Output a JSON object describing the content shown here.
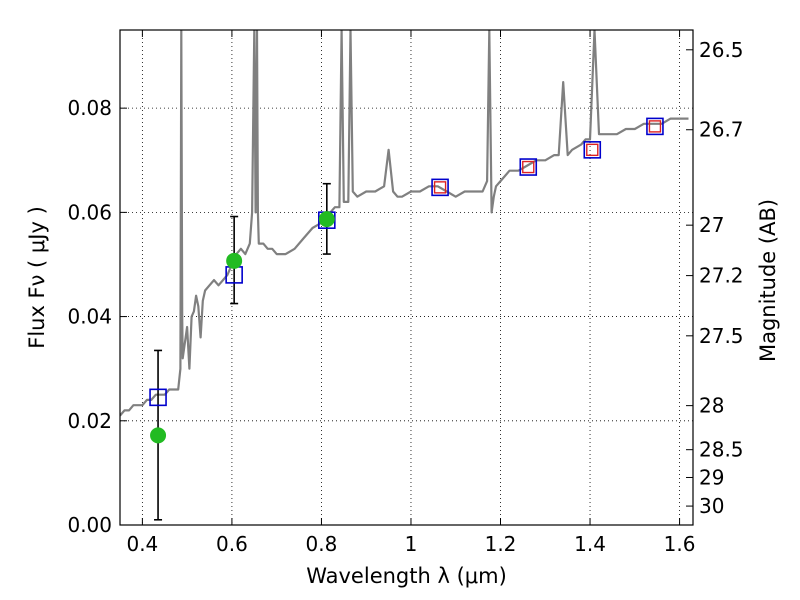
{
  "chart_data": {
    "type": "line",
    "xlabel": "Wavelength  λ (μm)",
    "ylabel": "Flux  Fν  ( μJy )",
    "ylabel_right": "Magnitude (AB)",
    "xlim": [
      0.35,
      1.63
    ],
    "ylim": [
      0.0,
      0.095
    ],
    "grid": true,
    "x_ticks": [
      0.4,
      0.6,
      0.8,
      1.0,
      1.2,
      1.4,
      1.6
    ],
    "x_tick_labels": [
      "0.4",
      "0.6",
      "0.8",
      "1",
      "1.2",
      "1.4",
      "1.6"
    ],
    "y_ticks": [
      0.0,
      0.02,
      0.04,
      0.06,
      0.08
    ],
    "y_tick_labels": [
      "0.00",
      "0.02",
      "0.04",
      "0.06",
      "0.08"
    ],
    "mag_ticks": [
      {
        "label": "26.5",
        "mag": 26.5
      },
      {
        "label": "26.7",
        "mag": 26.7
      },
      {
        "label": "27",
        "mag": 27.0
      },
      {
        "label": "27.2",
        "mag": 27.2
      },
      {
        "label": "27.5",
        "mag": 27.5
      },
      {
        "label": "28",
        "mag": 28.0
      },
      {
        "label": "28.5",
        "mag": 28.5
      },
      {
        "label": "29",
        "mag": 29.0
      },
      {
        "label": "30",
        "mag": 30.0
      }
    ],
    "spectrum": {
      "color": "#808080",
      "x": [
        0.35,
        0.36,
        0.37,
        0.38,
        0.39,
        0.4,
        0.41,
        0.42,
        0.43,
        0.44,
        0.45,
        0.46,
        0.47,
        0.48,
        0.485,
        0.487,
        0.489,
        0.49,
        0.495,
        0.5,
        0.505,
        0.51,
        0.515,
        0.52,
        0.525,
        0.53,
        0.535,
        0.54,
        0.55,
        0.56,
        0.57,
        0.58,
        0.59,
        0.6,
        0.61,
        0.62,
        0.63,
        0.64,
        0.645,
        0.65,
        0.653,
        0.656,
        0.658,
        0.66,
        0.67,
        0.68,
        0.69,
        0.7,
        0.72,
        0.74,
        0.76,
        0.78,
        0.8,
        0.81,
        0.82,
        0.83,
        0.84,
        0.845,
        0.85,
        0.86,
        0.865,
        0.87,
        0.88,
        0.9,
        0.92,
        0.94,
        0.95,
        0.96,
        0.97,
        0.98,
        1.0,
        1.02,
        1.04,
        1.06,
        1.08,
        1.1,
        1.12,
        1.14,
        1.16,
        1.17,
        1.175,
        1.18,
        1.185,
        1.19,
        1.2,
        1.22,
        1.24,
        1.26,
        1.28,
        1.3,
        1.32,
        1.33,
        1.34,
        1.35,
        1.36,
        1.38,
        1.39,
        1.4,
        1.41,
        1.42,
        1.44,
        1.46,
        1.48,
        1.5,
        1.52,
        1.54,
        1.56,
        1.58,
        1.6,
        1.62
      ],
      "y": [
        0.021,
        0.022,
        0.022,
        0.023,
        0.023,
        0.023,
        0.024,
        0.024,
        0.025,
        0.025,
        0.025,
        0.026,
        0.026,
        0.026,
        0.03,
        0.095,
        0.04,
        0.032,
        0.035,
        0.038,
        0.03,
        0.04,
        0.041,
        0.044,
        0.042,
        0.036,
        0.043,
        0.045,
        0.046,
        0.047,
        0.046,
        0.047,
        0.048,
        0.05,
        0.052,
        0.053,
        0.052,
        0.054,
        0.06,
        0.095,
        0.06,
        0.095,
        0.06,
        0.054,
        0.054,
        0.053,
        0.053,
        0.052,
        0.052,
        0.053,
        0.055,
        0.057,
        0.058,
        0.06,
        0.06,
        0.061,
        0.061,
        0.095,
        0.062,
        0.062,
        0.095,
        0.064,
        0.063,
        0.064,
        0.064,
        0.065,
        0.072,
        0.064,
        0.063,
        0.063,
        0.064,
        0.064,
        0.065,
        0.065,
        0.064,
        0.063,
        0.064,
        0.064,
        0.064,
        0.066,
        0.095,
        0.06,
        0.063,
        0.065,
        0.066,
        0.068,
        0.068,
        0.069,
        0.07,
        0.07,
        0.071,
        0.071,
        0.085,
        0.071,
        0.072,
        0.073,
        0.074,
        0.074,
        0.095,
        0.075,
        0.075,
        0.075,
        0.076,
        0.076,
        0.077,
        0.077,
        0.077,
        0.078,
        0.078,
        0.078
      ]
    },
    "photometry": [
      {
        "x": 0.435,
        "y": 0.0172,
        "yerr_low": 0.0162,
        "yerr_high": 0.0163
      },
      {
        "x": 0.605,
        "y": 0.0507,
        "yerr_low": 0.0082,
        "yerr_high": 0.0085
      },
      {
        "x": 0.812,
        "y": 0.0587,
        "yerr_low": 0.0067,
        "yerr_high": 0.0068
      }
    ],
    "model_blue_squares": [
      {
        "x": 0.435,
        "y": 0.0245
      },
      {
        "x": 0.605,
        "y": 0.048
      },
      {
        "x": 0.812,
        "y": 0.0585
      },
      {
        "x": 1.065,
        "y": 0.0648
      },
      {
        "x": 1.262,
        "y": 0.0687
      },
      {
        "x": 1.405,
        "y": 0.072
      },
      {
        "x": 1.545,
        "y": 0.0765
      }
    ],
    "model_red_squares": [
      {
        "x": 1.065,
        "y": 0.0648
      },
      {
        "x": 1.262,
        "y": 0.0687
      },
      {
        "x": 1.405,
        "y": 0.072
      },
      {
        "x": 1.545,
        "y": 0.0765
      }
    ],
    "colors": {
      "photometry": "#22bb22",
      "blue_square": "#0000cc",
      "red_square": "#dd2222",
      "errorbar": "#000000"
    }
  }
}
